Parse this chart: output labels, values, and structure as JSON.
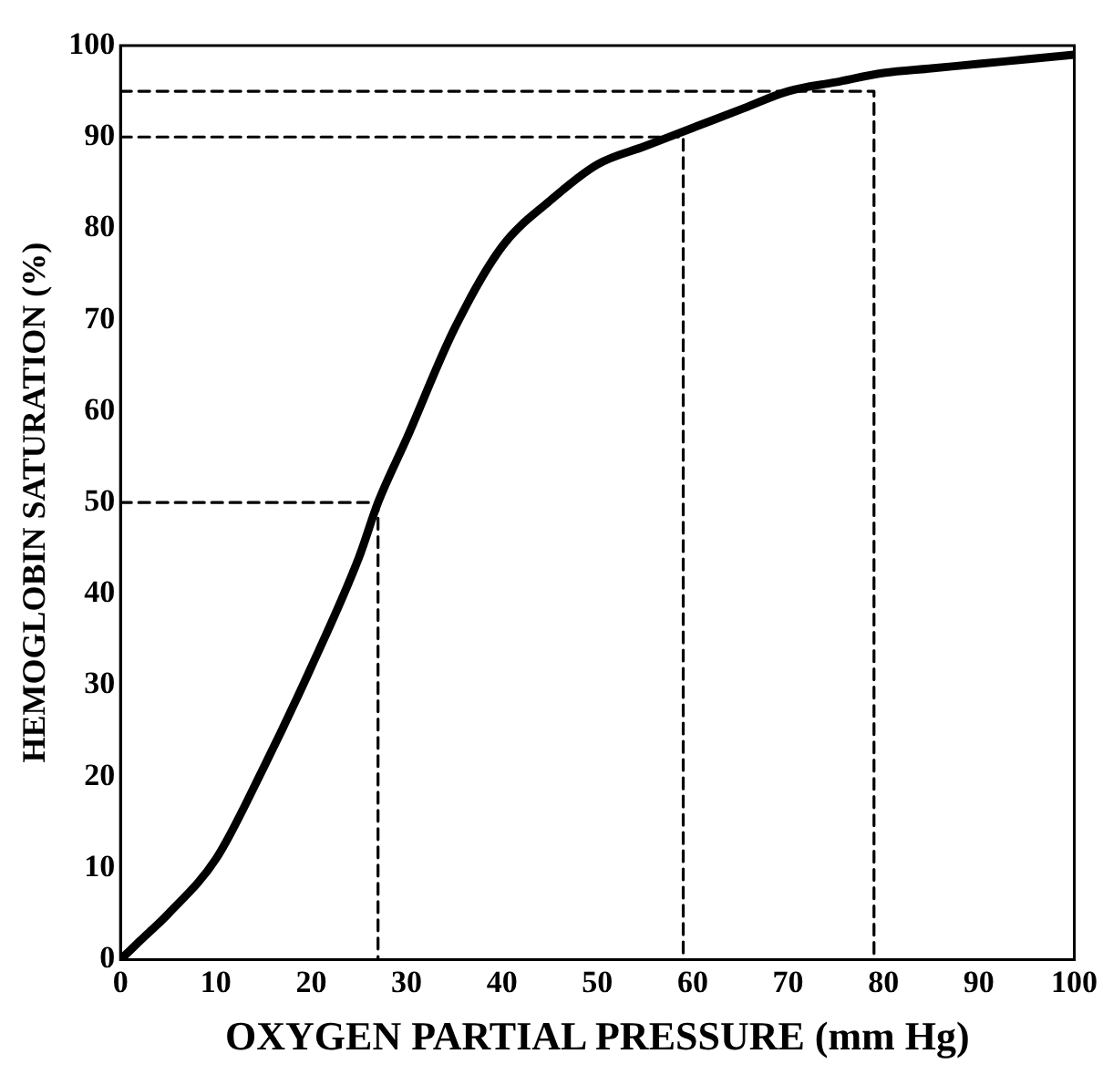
{
  "chart_data": {
    "type": "line",
    "xlabel": "OXYGEN PARTIAL PRESSURE (mm Hg)",
    "ylabel": "HEMOGLOBIN SATURATION (%)",
    "xlim": [
      0,
      100
    ],
    "ylim": [
      0,
      100
    ],
    "xticks": [
      0,
      10,
      20,
      30,
      40,
      50,
      60,
      70,
      80,
      90,
      100
    ],
    "yticks": [
      0,
      10,
      20,
      30,
      40,
      50,
      60,
      70,
      80,
      90,
      100
    ],
    "grid": false,
    "legend": false,
    "marker": "none",
    "series": [
      {
        "type": "line",
        "color": "#000000",
        "line_style": "solid",
        "x": [
          0,
          2,
          5,
          10,
          15,
          20,
          25,
          27,
          30,
          35,
          40,
          45,
          50,
          55,
          60,
          65,
          70,
          75,
          80,
          85,
          90,
          95,
          100
        ],
        "values": [
          0,
          2,
          5,
          11,
          21,
          32,
          44,
          50,
          57,
          69,
          78,
          83,
          87,
          89,
          91,
          93,
          95,
          96,
          97,
          97.5,
          98,
          98.5,
          99
        ]
      },
      {
        "type": "line",
        "color": "#000000",
        "line_style": "dashed",
        "x": [
          0,
          27,
          27
        ],
        "values": [
          50,
          50,
          0
        ]
      },
      {
        "type": "line",
        "color": "#000000",
        "line_style": "dashed",
        "x": [
          0,
          59,
          59
        ],
        "values": [
          90,
          90,
          0
        ]
      },
      {
        "type": "line",
        "color": "#000000",
        "line_style": "dashed",
        "x": [
          0,
          79,
          79
        ],
        "values": [
          95,
          95,
          0
        ]
      }
    ]
  }
}
